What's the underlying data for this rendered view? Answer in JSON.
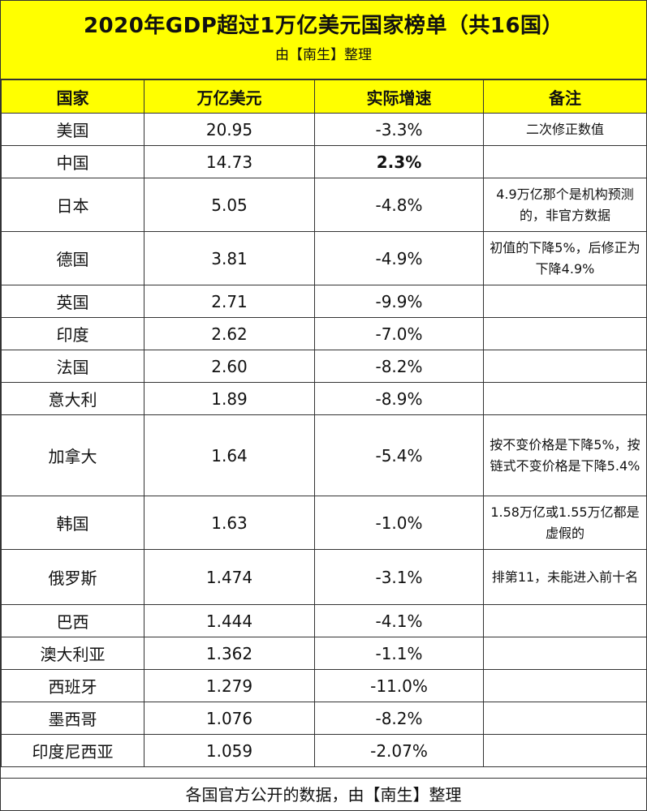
{
  "header": {
    "title": "2020年GDP超过1万亿美元国家榜单（共16国）",
    "subtitle": "由【南生】整理"
  },
  "columns": [
    "国家",
    "万亿美元",
    "实际增速",
    "备注"
  ],
  "rows": [
    {
      "country": "美国",
      "gdp": "20.95",
      "growth": "-3.3%",
      "note": "二次修正数值",
      "h": 40
    },
    {
      "country": "中国",
      "gdp": "14.73",
      "growth": "2.3%",
      "note": "",
      "h": 40,
      "bold": true
    },
    {
      "country": "日本",
      "gdp": "5.05",
      "growth": "-4.8%",
      "note": "4.9万亿那个是机构预测的，非官方数据",
      "h": 66
    },
    {
      "country": "德国",
      "gdp": "3.81",
      "growth": "-4.9%",
      "note": "初值的下降5%，后修正为下降4.9%",
      "h": 66
    },
    {
      "country": "英国",
      "gdp": "2.71",
      "growth": "-9.9%",
      "note": "",
      "h": 40
    },
    {
      "country": "印度",
      "gdp": "2.62",
      "growth": "-7.0%",
      "note": "",
      "h": 40
    },
    {
      "country": "法国",
      "gdp": "2.60",
      "growth": "-8.2%",
      "note": "",
      "h": 40
    },
    {
      "country": "意大利",
      "gdp": "1.89",
      "growth": "-8.9%",
      "note": "",
      "h": 40
    },
    {
      "country": "加拿大",
      "gdp": "1.64",
      "growth": "-5.4%",
      "note": "按不变价格是下降5%，按链式不变价格是下降5.4%",
      "h": 100
    },
    {
      "country": "韩国",
      "gdp": "1.63",
      "growth": "-1.0%",
      "note": "1.58万亿或1.55万亿都是虚假的",
      "h": 66
    },
    {
      "country": "俄罗斯",
      "gdp": "1.474",
      "growth": "-3.1%",
      "note": "排第11，未能进入前十名",
      "h": 68
    },
    {
      "country": "巴西",
      "gdp": "1.444",
      "growth": "-4.1%",
      "note": "",
      "h": 40
    },
    {
      "country": "澳大利亚",
      "gdp": "1.362",
      "growth": "-1.1%",
      "note": "",
      "h": 40
    },
    {
      "country": "西班牙",
      "gdp": "1.279",
      "growth": "-11.0%",
      "note": "",
      "h": 40
    },
    {
      "country": "墨西哥",
      "gdp": "1.076",
      "growth": "-8.2%",
      "note": "",
      "h": 40
    },
    {
      "country": "印度尼西亚",
      "gdp": "1.059",
      "growth": "-2.07%",
      "note": "",
      "h": 40
    }
  ],
  "footer": "各国官方公开的数据，由【南生】整理"
}
